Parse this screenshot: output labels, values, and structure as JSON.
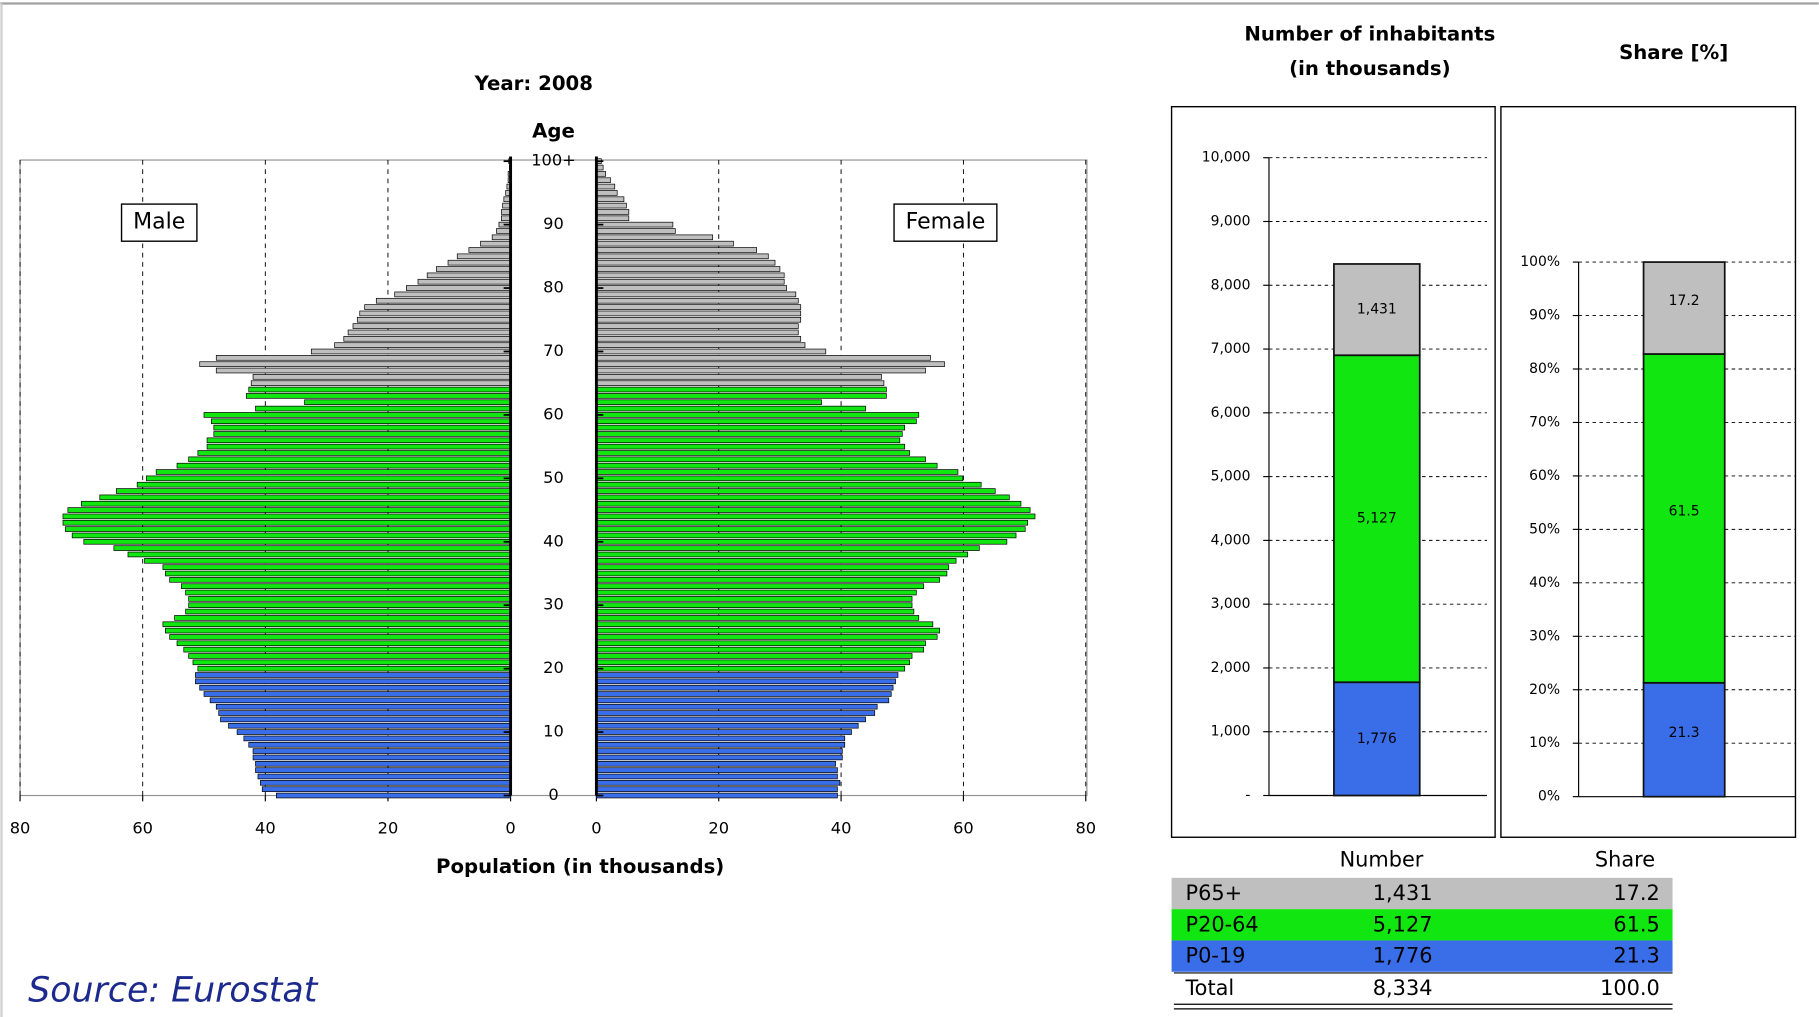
{
  "chart_data": [
    {
      "type": "pyramid",
      "title": "Year:  2008",
      "y_label": "Age",
      "x_label": "Population (in thousands)",
      "categories": [
        "0",
        null,
        null,
        null,
        null,
        null,
        null,
        null,
        null,
        null,
        "10",
        null,
        null,
        null,
        null,
        null,
        null,
        null,
        null,
        null,
        "20",
        null,
        null,
        null,
        null,
        null,
        null,
        null,
        null,
        null,
        "30",
        null,
        null,
        null,
        null,
        null,
        null,
        null,
        null,
        null,
        "40",
        null,
        null,
        null,
        null,
        null,
        null,
        null,
        null,
        null,
        "50",
        null,
        null,
        null,
        null,
        null,
        null,
        null,
        null,
        null,
        "60",
        null,
        null,
        null,
        null,
        null,
        null,
        null,
        null,
        null,
        "70",
        null,
        null,
        null,
        null,
        null,
        null,
        null,
        null,
        null,
        "80",
        null,
        null,
        null,
        null,
        null,
        null,
        null,
        null,
        null,
        "90",
        null,
        null,
        null,
        null,
        null,
        null,
        null,
        null,
        null,
        "100+"
      ],
      "bar_colors": [
        "#3a6ee8",
        "#3a6ee8",
        "#3a6ee8",
        "#3a6ee8",
        "#3a6ee8",
        "#3a6ee8",
        "#3a6ee8",
        "#3a6ee8",
        "#3a6ee8",
        "#3a6ee8",
        "#3a6ee8",
        "#3a6ee8",
        "#3a6ee8",
        "#3a6ee8",
        "#3a6ee8",
        "#3a6ee8",
        "#3a6ee8",
        "#3a6ee8",
        "#3a6ee8",
        "#3a6ee8",
        "#11e611",
        "#11e611",
        "#11e611",
        "#11e611",
        "#11e611",
        "#11e611",
        "#11e611",
        "#11e611",
        "#11e611",
        "#11e611",
        "#11e611",
        "#11e611",
        "#11e611",
        "#11e611",
        "#11e611",
        "#11e611",
        "#11e611",
        "#11e611",
        "#11e611",
        "#11e611",
        "#11e611",
        "#11e611",
        "#11e611",
        "#11e611",
        "#11e611",
        "#11e611",
        "#11e611",
        "#11e611",
        "#11e611",
        "#11e611",
        "#11e611",
        "#11e611",
        "#11e611",
        "#11e611",
        "#11e611",
        "#11e611",
        "#11e611",
        "#11e611",
        "#11e611",
        "#11e611",
        "#11e611",
        "#11e611",
        "#11e611",
        "#11e611",
        "#11e611",
        "#bfbfbf",
        "#bfbfbf",
        "#bfbfbf",
        "#bfbfbf",
        "#bfbfbf",
        "#bfbfbf",
        "#bfbfbf",
        "#bfbfbf",
        "#bfbfbf",
        "#bfbfbf",
        "#bfbfbf",
        "#bfbfbf",
        "#bfbfbf",
        "#bfbfbf",
        "#bfbfbf",
        "#bfbfbf",
        "#bfbfbf",
        "#bfbfbf",
        "#bfbfbf",
        "#bfbfbf",
        "#bfbfbf",
        "#bfbfbf",
        "#bfbfbf",
        "#bfbfbf",
        "#bfbfbf",
        "#bfbfbf",
        "#bfbfbf",
        "#bfbfbf",
        "#bfbfbf",
        "#bfbfbf",
        "#bfbfbf",
        "#bfbfbf",
        "#bfbfbf",
        "#bfbfbf",
        "#bfbfbf",
        "#bfbfbf"
      ],
      "series": [
        {
          "name": "Male",
          "side": "left",
          "values": [
            38.2,
            40.5,
            40.8,
            41.2,
            41.6,
            41.6,
            42,
            42,
            42.7,
            43.5,
            44.6,
            46,
            47.3,
            47.6,
            48,
            49,
            50,
            50.7,
            51.4,
            51.4,
            51,
            51.8,
            52.5,
            53.3,
            54.4,
            55.6,
            56.3,
            56.7,
            54.8,
            53,
            52.5,
            52.5,
            53,
            53.7,
            55.6,
            56.3,
            56.7,
            59.7,
            62.4,
            64.7,
            69.6,
            71.5,
            72.6,
            73,
            73,
            72.2,
            70,
            67,
            64.3,
            60.9,
            59.4,
            57.8,
            54.4,
            52.5,
            51,
            49.5,
            49.5,
            48.4,
            48.4,
            48.8,
            50,
            41.6,
            33.6,
            43.1,
            42.7,
            42.3,
            42,
            48,
            50.7,
            48,
            32.5,
            28.7,
            27.2,
            26.5,
            25.7,
            25,
            24.6,
            23.8,
            21.9,
            18.9,
            17,
            15.1,
            13.6,
            12.1,
            10.2,
            8.7,
            6.8,
            4.9,
            3,
            2.3,
            1.9,
            1.5,
            1.5,
            1.3,
            1.1,
            0.8,
            0.6,
            0.4,
            0.4,
            0.2,
            0.3
          ]
        },
        {
          "name": "Female",
          "side": "right",
          "values": [
            39.4,
            39.4,
            39.8,
            39.4,
            39.4,
            39.1,
            40.2,
            40.2,
            40.6,
            40.6,
            41.7,
            42.8,
            44,
            45.5,
            45.9,
            47.8,
            48.2,
            48.5,
            48.9,
            49.3,
            50.4,
            51.2,
            51.6,
            53.5,
            53.8,
            55.7,
            56.1,
            55,
            52.7,
            51.9,
            51.6,
            51.6,
            52.3,
            53.5,
            56.1,
            57.3,
            57.6,
            58.8,
            60.7,
            62.6,
            67.1,
            68.6,
            70.1,
            70.5,
            71.7,
            70.9,
            69.4,
            67.5,
            65.2,
            62.9,
            59.9,
            59.1,
            55.7,
            53.8,
            51.2,
            50.4,
            49.6,
            50,
            50.4,
            52.3,
            52.7,
            44,
            36.8,
            47.4,
            47.4,
            47,
            46.6,
            53.8,
            56.9,
            54.6,
            37.5,
            34.1,
            33.4,
            33,
            33,
            33.4,
            33.4,
            33.4,
            33,
            32.6,
            31.1,
            30.7,
            30.7,
            30,
            29.2,
            28.1,
            26.2,
            22.4,
            19,
            12.9,
            12.5,
            5.3,
            5.3,
            4.9,
            4.5,
            3.4,
            3,
            2.3,
            1.5,
            1.1,
            0.8
          ]
        }
      ],
      "xlim": [
        0,
        80
      ],
      "xticks": [
        0,
        20,
        40,
        60,
        80
      ],
      "grid": true
    },
    {
      "type": "stacked_bar",
      "title": [
        "Number of inhabitants",
        "(in thousands)"
      ],
      "ylim": [
        0,
        10000
      ],
      "yticks": [
        {
          "value": 0,
          "label": "-"
        },
        {
          "value": 1000,
          "label": "1,000"
        },
        {
          "value": 2000,
          "label": "2,000"
        },
        {
          "value": 3000,
          "label": "3,000"
        },
        {
          "value": 4000,
          "label": "4,000"
        },
        {
          "value": 5000,
          "label": "5,000"
        },
        {
          "value": 6000,
          "label": "6,000"
        },
        {
          "value": 7000,
          "label": "7,000"
        },
        {
          "value": 8000,
          "label": "8,000"
        },
        {
          "value": 9000,
          "label": "9,000"
        },
        {
          "value": 10000,
          "label": "10,000"
        }
      ],
      "grid": true,
      "series": [
        {
          "name": "P0-19",
          "color": "#3a6ee8",
          "values": [
            1776
          ],
          "value_labels": [
            "1,776"
          ]
        },
        {
          "name": "P20-64",
          "color": "#11e611",
          "values": [
            5127
          ],
          "value_labels": [
            "5,127"
          ]
        },
        {
          "name": "P65+",
          "color": "#bfbfbf",
          "values": [
            1431
          ],
          "value_labels": [
            "1,431"
          ]
        }
      ]
    },
    {
      "type": "stacked_bar",
      "title": [
        "Share [%]"
      ],
      "ylim": [
        0,
        100
      ],
      "yticks": [
        {
          "value": 0,
          "label": "0%"
        },
        {
          "value": 10,
          "label": "10%"
        },
        {
          "value": 20,
          "label": "20%"
        },
        {
          "value": 30,
          "label": "30%"
        },
        {
          "value": 40,
          "label": "40%"
        },
        {
          "value": 50,
          "label": "50%"
        },
        {
          "value": 60,
          "label": "60%"
        },
        {
          "value": 70,
          "label": "70%"
        },
        {
          "value": 80,
          "label": "80%"
        },
        {
          "value": 90,
          "label": "90%"
        },
        {
          "value": 100,
          "label": "100%"
        }
      ],
      "grid": true,
      "series": [
        {
          "color": "#3a6ee8",
          "values": [
            21.3
          ]
        },
        {
          "color": "#11e611",
          "values": [
            61.5
          ]
        },
        {
          "color": "#bfbfbf",
          "values": [
            17.2
          ]
        }
      ]
    }
  ],
  "table": {
    "header": [
      "Number",
      "Share"
    ],
    "total": [
      "Total",
      "8,334",
      "100.0"
    ]
  },
  "source": "Source: Eurostat"
}
